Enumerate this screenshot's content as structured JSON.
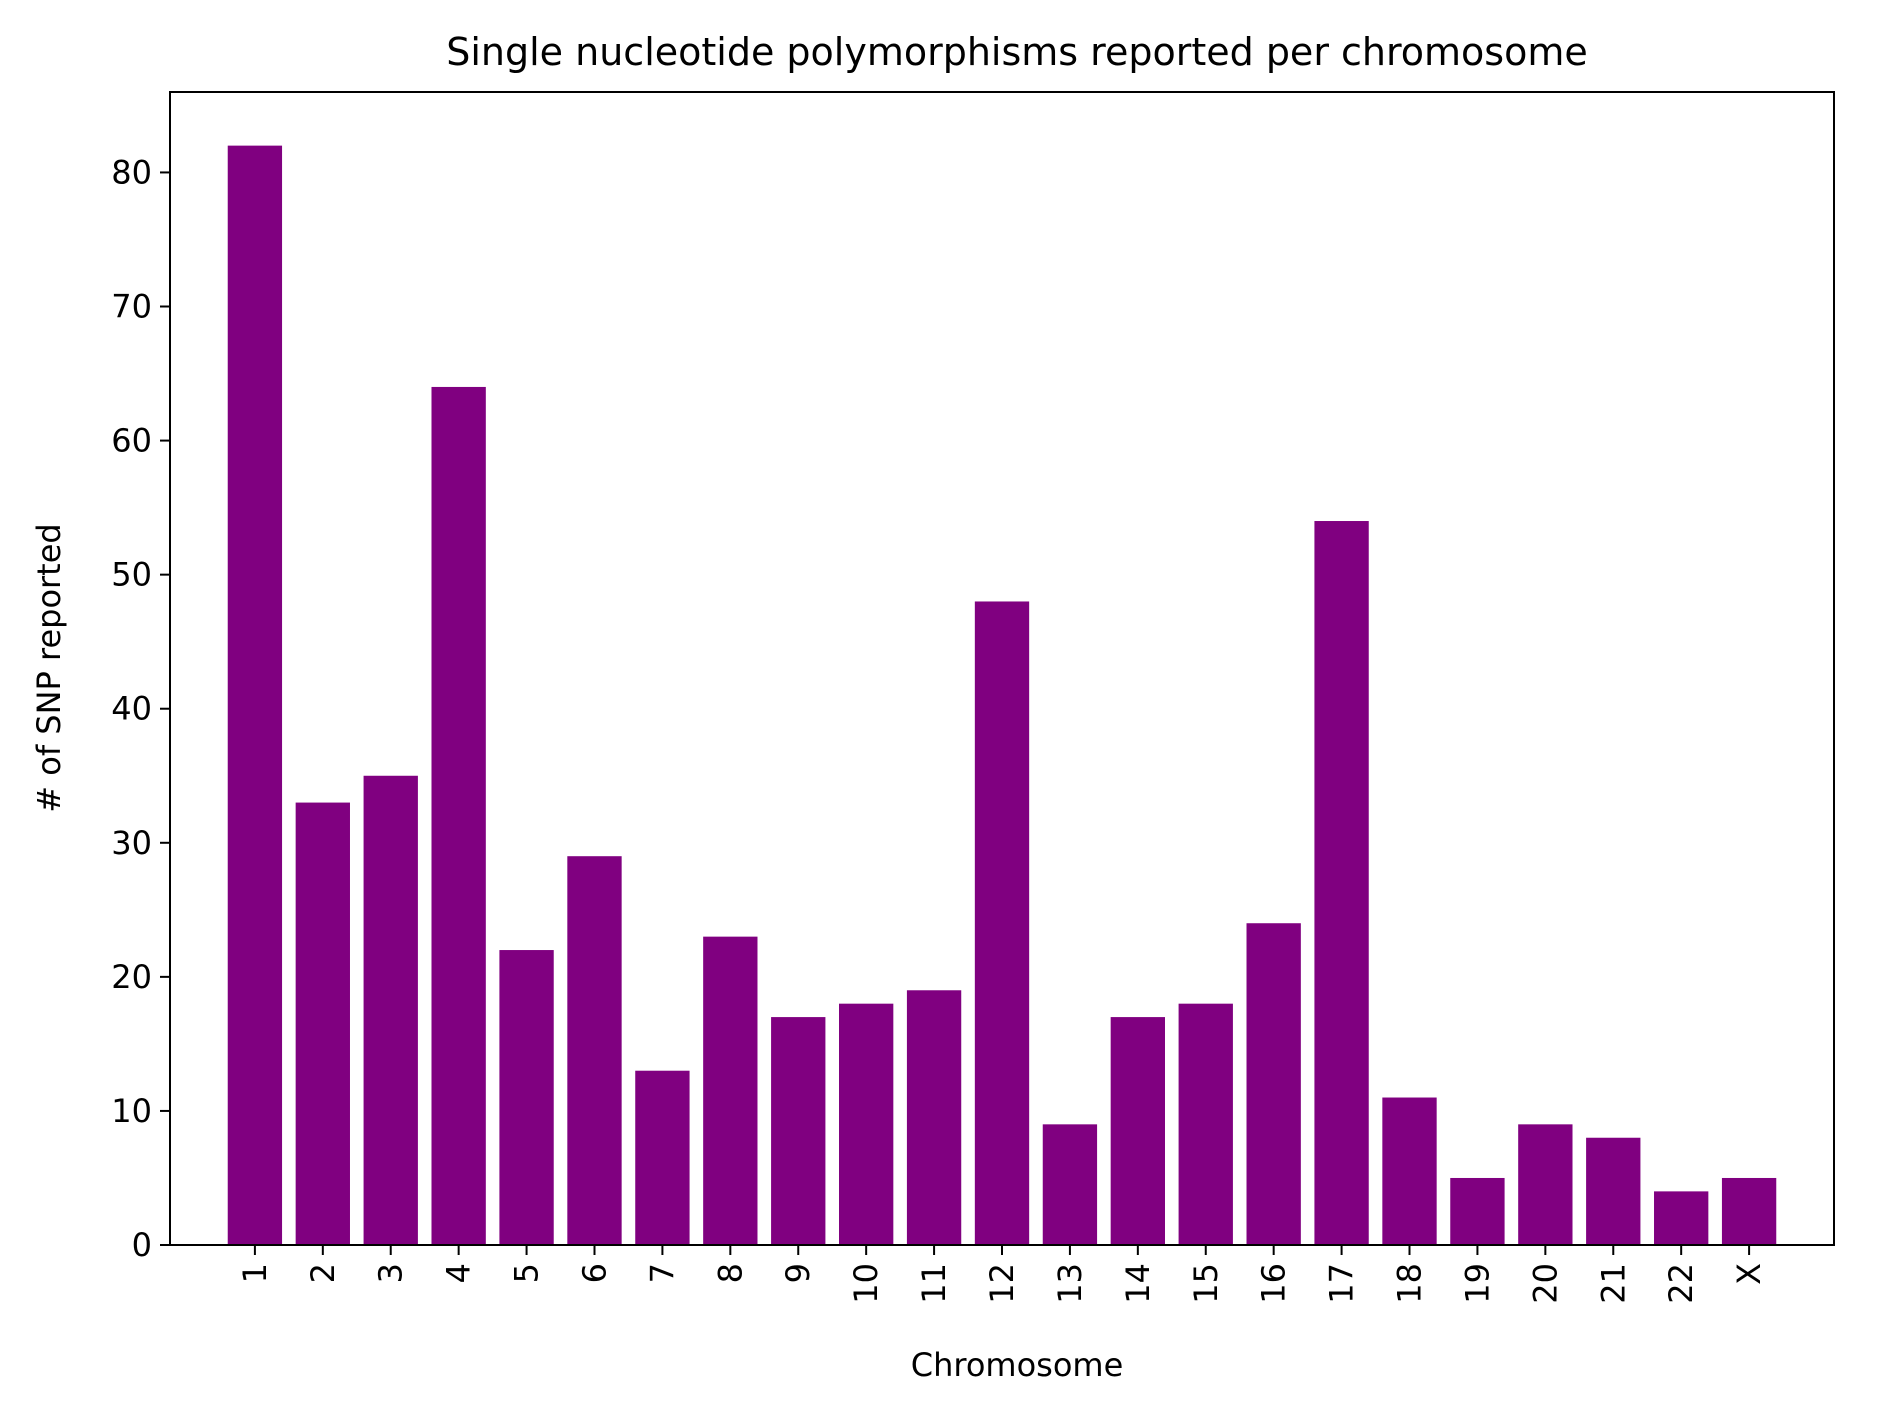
{
  "chart_data": {
    "type": "bar",
    "title": "Single nucleotide polymorphisms reported per chromosome",
    "xlabel": "Chromosome",
    "ylabel": "# of SNP reported",
    "categories": [
      "1",
      "2",
      "3",
      "4",
      "5",
      "6",
      "7",
      "8",
      "9",
      "10",
      "11",
      "12",
      "13",
      "14",
      "15",
      "16",
      "17",
      "18",
      "19",
      "20",
      "21",
      "22",
      "X"
    ],
    "values": [
      82,
      33,
      35,
      64,
      22,
      29,
      13,
      23,
      17,
      18,
      19,
      48,
      9,
      17,
      18,
      24,
      54,
      11,
      5,
      9,
      8,
      4,
      5
    ],
    "ylim": [
      0,
      86
    ],
    "yticks": [
      0,
      10,
      20,
      30,
      40,
      50,
      60,
      70,
      80
    ],
    "x_tick_rotation": "vertical",
    "grid": false,
    "legend": "none",
    "colors": {
      "bar": "#800080",
      "axis": "#000000",
      "background": "#ffffff"
    }
  }
}
